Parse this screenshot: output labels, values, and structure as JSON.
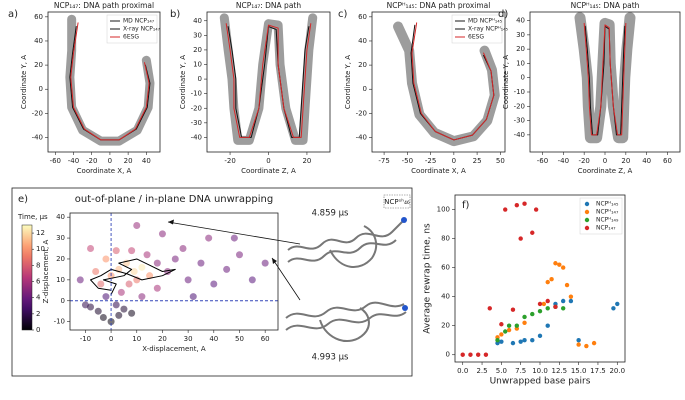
{
  "chart_data": [
    {
      "type": "line",
      "panel_label": "a)",
      "title": "NCP₁₄₇: DNA path proximal",
      "xlabel": "Coordinate X, A",
      "ylabel": "Coordinate Y, A",
      "xlim": [
        -68,
        55
      ],
      "xticks": [
        -60,
        -40,
        -20,
        0,
        20,
        40
      ],
      "ylim": [
        -52,
        64
      ],
      "yticks": [
        -40,
        -20,
        0,
        20,
        40,
        60
      ],
      "legend": "upper right",
      "series": [
        {
          "name": "MD NCP₁₄₇",
          "color": "#8c8c8c",
          "linewidth": 9,
          "x": [
            -42,
            -42,
            -44,
            -42,
            -30,
            -10,
            10,
            30,
            42,
            44,
            40
          ],
          "values": [
            58,
            32,
            10,
            -15,
            -34,
            -43,
            -43,
            -34,
            -15,
            5,
            24
          ]
        },
        {
          "name": "X-ray NCP₁₄₇",
          "color": "#111111",
          "linewidth": 1,
          "x": [
            -37,
            -41,
            -44,
            -41,
            -29,
            -10,
            10,
            29,
            41,
            44,
            39
          ],
          "values": [
            52,
            30,
            10,
            -15,
            -33,
            -42,
            -42,
            -33,
            -15,
            5,
            20
          ]
        },
        {
          "name": "6ESG",
          "color": "#d62728",
          "linewidth": 1,
          "x": [
            -35,
            -40,
            -43,
            -40,
            -28,
            -10,
            10,
            28,
            40,
            43,
            38
          ],
          "values": [
            55,
            30,
            10,
            -15,
            -33,
            -42,
            -42,
            -33,
            -15,
            5,
            22
          ]
        }
      ]
    },
    {
      "type": "line",
      "panel_label": "b)",
      "title": "NCP₁₄₇: DNA path",
      "xlabel": "Coordinate Z, A",
      "ylabel": "Coordinate Y, A",
      "xlim": [
        -32,
        32
      ],
      "xticks": [
        -20,
        0,
        20
      ],
      "ylim": [
        -50,
        46
      ],
      "yticks": [
        -40,
        -30,
        -20,
        -10,
        0,
        10,
        20,
        30,
        40
      ],
      "series": [
        {
          "color": "#8c8c8c",
          "linewidth": 9,
          "x": [
            -23,
            -21,
            -19,
            -18,
            -16,
            -10,
            -5,
            -3,
            0,
            5,
            6,
            9,
            14,
            18,
            19,
            20,
            21,
            23
          ],
          "values": [
            42,
            20,
            0,
            -20,
            -42,
            -42,
            -20,
            10,
            38,
            37,
            10,
            -20,
            -42,
            -42,
            -20,
            0,
            20,
            42
          ]
        },
        {
          "color": "#111111",
          "linewidth": 1,
          "x": [
            -21,
            -19,
            -17,
            -17,
            -14,
            -9,
            -5,
            -2,
            0,
            4,
            5,
            8,
            12,
            16,
            17,
            18,
            19,
            21
          ],
          "values": [
            36,
            20,
            0,
            -20,
            -40,
            -40,
            -20,
            10,
            36,
            34,
            10,
            -20,
            -40,
            -40,
            -20,
            0,
            20,
            36
          ]
        },
        {
          "color": "#d62728",
          "linewidth": 1,
          "x": [
            -22,
            -20,
            -18,
            -18,
            -15,
            -10,
            -5,
            -3,
            0,
            5,
            5,
            8,
            13,
            17,
            18,
            19,
            20,
            22
          ],
          "values": [
            38,
            20,
            0,
            -20,
            -40,
            -40,
            -20,
            10,
            37,
            35,
            10,
            -20,
            -40,
            -40,
            -20,
            0,
            20,
            38
          ]
        }
      ]
    },
    {
      "type": "line",
      "panel_label": "c)",
      "title": "NCPᴴ₁₄₅: DNA path proximal",
      "xlabel": "Coordinate X, A",
      "ylabel": "Coordinate Y, A",
      "xlim": [
        -88,
        55
      ],
      "xticks": [
        -75,
        -50,
        -25,
        0,
        25,
        50
      ],
      "ylim": [
        -52,
        64
      ],
      "yticks": [
        -40,
        -20,
        0,
        20,
        40,
        60
      ],
      "legend": "upper right",
      "series": [
        {
          "name": "MD NCPᴴ₁₄₅",
          "color": "#8c8c8c",
          "linewidth": 10,
          "x": [
            -60,
            -48,
            -45,
            -37,
            -21,
            0,
            21,
            36,
            44,
            41,
            33
          ],
          "values": [
            52,
            32,
            5,
            -21,
            -36,
            -43,
            -39,
            -26,
            -5,
            16,
            32
          ]
        },
        {
          "name": "X-ray NCPᴴ₁₄₅",
          "color": "#111111",
          "linewidth": 1,
          "x": [
            -42,
            -46,
            -44,
            -36,
            -20,
            0,
            20,
            35,
            43,
            40,
            32
          ],
          "values": [
            53,
            30,
            5,
            -20,
            -35,
            -42,
            -38,
            -25,
            -5,
            15,
            28
          ]
        },
        {
          "name": "6ESG",
          "color": "#d62728",
          "linewidth": 1,
          "x": [
            -40,
            -45,
            -43,
            -35,
            -20,
            0,
            20,
            35,
            43,
            40,
            32
          ],
          "values": [
            55,
            30,
            5,
            -20,
            -35,
            -42,
            -38,
            -25,
            -5,
            15,
            30
          ]
        }
      ]
    },
    {
      "type": "line",
      "panel_label": "d)",
      "title": "NCPᴴ₁₄₅: DNA path",
      "xlabel": "Coordinate Z, A",
      "ylabel": "Coordinate Y, A",
      "xlim": [
        -72,
        72
      ],
      "xticks": [
        -60,
        -40,
        -20,
        0,
        20,
        40,
        60
      ],
      "ylim": [
        -52,
        46
      ],
      "yticks": [
        -40,
        -30,
        -20,
        -10,
        0,
        10,
        20,
        30,
        40
      ],
      "series": [
        {
          "color": "#8c8c8c",
          "linewidth": 11,
          "x": [
            -24,
            -20,
            -17,
            -16,
            -14,
            -8,
            -4,
            -2,
            0,
            4,
            5,
            8,
            13,
            17,
            18,
            19,
            21,
            24
          ],
          "values": [
            42,
            20,
            0,
            -20,
            -42,
            -42,
            -20,
            10,
            38,
            37,
            10,
            -20,
            -42,
            -42,
            -20,
            0,
            20,
            42
          ]
        },
        {
          "color": "#111111",
          "linewidth": 1,
          "x": [
            -19,
            -17,
            -15,
            -14,
            -12,
            -7,
            -4,
            -1,
            0,
            4,
            5,
            8,
            11,
            15,
            16,
            17,
            18,
            19
          ],
          "values": [
            36,
            20,
            0,
            -20,
            -40,
            -40,
            -20,
            10,
            36,
            34,
            10,
            -20,
            -40,
            -40,
            -20,
            0,
            20,
            36
          ]
        },
        {
          "color": "#d62728",
          "linewidth": 1,
          "x": [
            -20,
            -18,
            -16,
            -15,
            -13,
            -8,
            -4,
            -2,
            0,
            4,
            5,
            8,
            12,
            16,
            17,
            18,
            19,
            20
          ],
          "values": [
            38,
            20,
            0,
            -20,
            -40,
            -40,
            -20,
            10,
            37,
            35,
            10,
            -20,
            -40,
            -40,
            -20,
            0,
            20,
            38
          ]
        }
      ]
    },
    {
      "type": "scatter",
      "panel_label": "e)",
      "title": "out-of-plane / in-plane DNA unwrapping",
      "xlabel": "X-displacement, A",
      "ylabel": "Z-displacement, A",
      "xlim": [
        -16,
        65
      ],
      "xticks": [
        -10,
        0,
        10,
        20,
        30,
        40,
        50,
        60
      ],
      "ylim": [
        -14,
        42
      ],
      "yticks": [
        -10,
        0,
        10,
        20,
        30,
        40
      ],
      "vline": 0,
      "hline": 0,
      "refline_color": "#3346b8",
      "colorbar": {
        "label": "Time, µs",
        "cmap": "magma",
        "lim": [
          0,
          13
        ],
        "ticks": [
          0,
          2,
          4,
          6,
          8,
          10,
          12
        ]
      },
      "annotations": [
        "4.859 µs",
        "4.993 µs"
      ],
      "inset_label": "NCPˢʰ₄₆",
      "series": [
        {
          "x": [
            -3,
            0,
            3,
            -5,
            5,
            8,
            -8,
            2,
            -2,
            4,
            7,
            10,
            -4,
            0,
            3,
            6,
            9,
            12,
            15,
            -6,
            -2,
            2,
            8,
            14,
            18,
            22,
            25,
            30,
            28,
            35,
            40,
            45,
            50,
            55,
            60,
            38,
            20,
            10,
            -8,
            -12,
            32,
            48,
            18,
            12,
            -10
          ],
          "values": [
            -8,
            -10,
            -7,
            -5,
            -4,
            -6,
            -3,
            -2,
            2,
            4,
            8,
            10,
            8,
            12,
            15,
            18,
            14,
            16,
            12,
            14,
            20,
            24,
            24,
            22,
            18,
            14,
            20,
            10,
            25,
            18,
            8,
            15,
            22,
            10,
            18,
            30,
            32,
            36,
            25,
            10,
            2,
            30,
            6,
            2,
            -2
          ],
          "c": [
            0.5,
            0.3,
            0.8,
            1,
            1.2,
            0.6,
            1.5,
            2,
            3,
            6,
            8,
            9,
            8.5,
            10,
            11,
            11.5,
            12,
            12.5,
            10,
            9,
            10,
            8,
            7,
            6,
            5,
            5,
            4.5,
            4,
            5,
            4,
            3.5,
            4,
            4.5,
            3.5,
            4,
            5,
            5,
            5.5,
            7,
            4,
            3,
            4,
            6,
            5,
            2
          ]
        },
        {
          "mode": "line",
          "color": "#000000",
          "x": [
            0,
            2,
            -3,
            5,
            8,
            3,
            10,
            15,
            20,
            25,
            20,
            12,
            6,
            0,
            -4,
            -8,
            -5,
            0
          ],
          "values": [
            3,
            8,
            10,
            12,
            15,
            18,
            20,
            17,
            14,
            15,
            12,
            10,
            13,
            15,
            12,
            10,
            6,
            5
          ]
        }
      ]
    },
    {
      "type": "scatter",
      "panel_label": "f)",
      "xlabel": "Unwrapped base pairs",
      "ylabel": "Average rewrap time, ns",
      "xlim": [
        -1,
        21
      ],
      "xticks": [
        {
          "value": 0,
          "label": "0.0"
        },
        {
          "value": 2.5,
          "label": "2.5"
        },
        {
          "value": 5,
          "label": "5.0"
        },
        {
          "value": 7.5,
          "label": "7.5"
        },
        {
          "value": 10,
          "label": "10.0"
        },
        {
          "value": 12.5,
          "label": "12.5"
        },
        {
          "value": 15,
          "label": "15.0"
        },
        {
          "value": 17.5,
          "label": "17.5"
        },
        {
          "value": 20,
          "label": "20.0"
        }
      ],
      "ylim": [
        -5,
        110
      ],
      "yticks": [
        0,
        20,
        40,
        60,
        80,
        100
      ],
      "legend": "upper right",
      "series": [
        {
          "name": "NCPᴴ₁₄₅",
          "color": "#1f77b4",
          "x": [
            4.5,
            5,
            6.5,
            7.5,
            8,
            9,
            10,
            11,
            12,
            13,
            14,
            15,
            19.5,
            20
          ],
          "values": [
            8,
            9,
            8,
            9,
            10,
            10,
            13,
            20,
            35,
            37,
            37,
            10,
            32,
            35
          ]
        },
        {
          "name": "NCPᴴ₁₄₇",
          "color": "#ff7f0e",
          "x": [
            4.5,
            5,
            6,
            7,
            8,
            10.5,
            11,
            11.5,
            12,
            12.5,
            13,
            13.5,
            14,
            15,
            16,
            17
          ],
          "values": [
            12,
            14,
            17,
            18,
            22,
            35,
            50,
            52,
            63,
            62,
            60,
            48,
            40,
            7,
            6,
            8
          ]
        },
        {
          "name": "NCPᴴ₁₄₉",
          "color": "#2ca02c",
          "x": [
            4.5,
            5.5,
            6,
            7,
            8,
            9,
            10,
            11,
            12,
            13
          ],
          "values": [
            10,
            16,
            20,
            20,
            26,
            28,
            30,
            32,
            33,
            32
          ]
        },
        {
          "name": "NCP₁₄₇",
          "color": "#d62728",
          "x": [
            0,
            1,
            2,
            3,
            3.5,
            5,
            5.5,
            6.5,
            7,
            7.5,
            8,
            9,
            9.5,
            10,
            11,
            12
          ],
          "values": [
            0,
            0,
            0,
            0,
            32,
            21,
            100,
            31,
            103,
            80,
            104,
            84,
            100,
            35,
            37,
            33
          ]
        }
      ]
    }
  ]
}
